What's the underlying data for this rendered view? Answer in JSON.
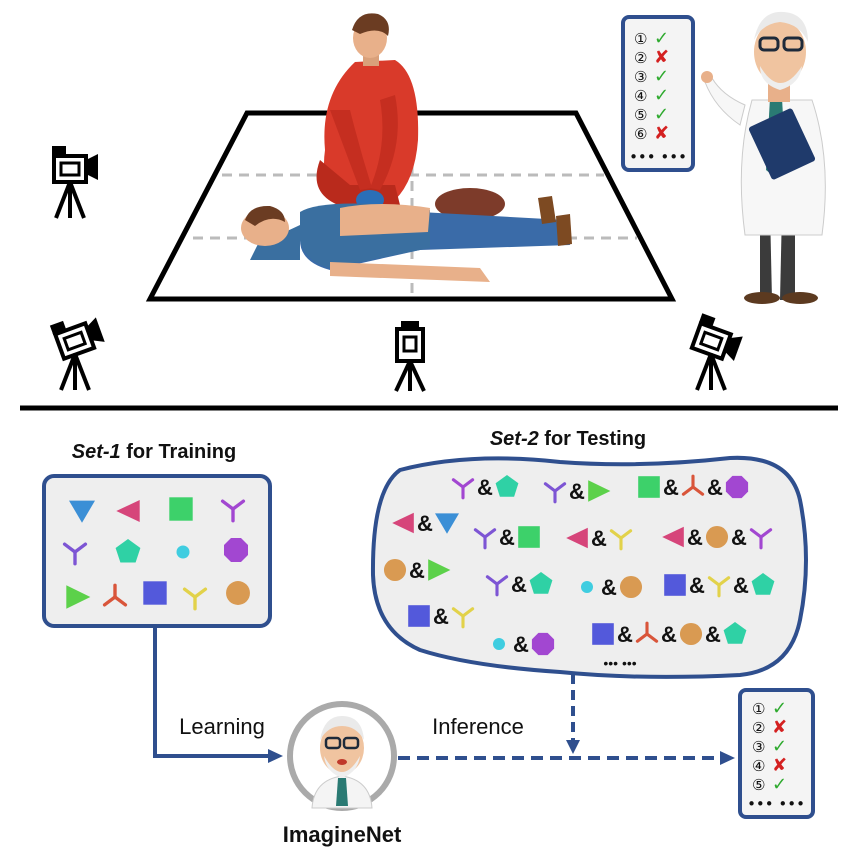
{
  "colors": {
    "navy": "#2F4F8E",
    "panel_fill": "#EEEEEE",
    "check_green": "#2EAA2E",
    "cross_red": "#D42020",
    "blue": "#3B8FD6",
    "magenta": "#D6457A",
    "green": "#3DD16A",
    "violet": "#A247D1",
    "purple": "#7D55D4",
    "teal": "#2FD1A5",
    "cyan": "#3FCDE0",
    "orange": "#D99A52",
    "lime": "#5CD14A",
    "red": "#D9553A",
    "indigo": "#5359DB",
    "yellow": "#E2D24A"
  },
  "top": {
    "checklist": {
      "items": [
        {
          "num": "①",
          "mark": "✓"
        },
        {
          "num": "②",
          "mark": "✘"
        },
        {
          "num": "③",
          "mark": "✓"
        },
        {
          "num": "④",
          "mark": "✓"
        },
        {
          "num": "⑤",
          "mark": "✓"
        },
        {
          "num": "⑥",
          "mark": "✘"
        }
      ],
      "more": "••• •••"
    }
  },
  "set1": {
    "title_em": "Set-1",
    "title_rest": " for Training",
    "shapes": [
      [
        "tri-down",
        "blue"
      ],
      [
        "tri-left",
        "magenta"
      ],
      [
        "square",
        "green"
      ],
      [
        "y-sym",
        "violet"
      ],
      [
        "y-sym",
        "purple"
      ],
      [
        "pentagon",
        "teal"
      ],
      [
        "circle-sm",
        "cyan"
      ],
      [
        "octagon",
        "violet"
      ],
      [
        "tri-right",
        "lime"
      ],
      [
        "y-inv",
        "red"
      ],
      [
        "square",
        "indigo"
      ],
      [
        "y-sym",
        "yellow"
      ],
      [
        "circle",
        "orange"
      ]
    ]
  },
  "set2": {
    "title_em": "Set-2",
    "title_rest": " for Testing",
    "amp": "&",
    "groups": [
      [
        [
          "y-sym",
          "violet"
        ],
        [
          "pentagon",
          "teal"
        ]
      ],
      [
        [
          "y-sym",
          "purple"
        ],
        [
          "tri-right",
          "lime"
        ]
      ],
      [
        [
          "square",
          "green"
        ],
        [
          "y-inv",
          "red"
        ],
        [
          "octagon",
          "violet"
        ]
      ],
      [
        [
          "tri-left",
          "magenta"
        ],
        [
          "tri-down",
          "blue"
        ]
      ],
      [
        [
          "y-sym",
          "purple"
        ],
        [
          "square",
          "green"
        ]
      ],
      [
        [
          "tri-left",
          "magenta"
        ],
        [
          "y-sym",
          "yellow"
        ]
      ],
      [
        [
          "tri-left",
          "magenta"
        ],
        [
          "circle",
          "orange"
        ],
        [
          "y-sym",
          "violet"
        ]
      ],
      [
        [
          "circle",
          "orange"
        ],
        [
          "tri-right",
          "lime"
        ]
      ],
      [
        [
          "y-sym",
          "purple"
        ],
        [
          "pentagon",
          "teal"
        ]
      ],
      [
        [
          "circle-sm",
          "cyan"
        ],
        [
          "circle",
          "orange"
        ]
      ],
      [
        [
          "square",
          "indigo"
        ],
        [
          "y-sym",
          "yellow"
        ],
        [
          "pentagon",
          "teal"
        ]
      ],
      [
        [
          "square",
          "indigo"
        ],
        [
          "y-sym",
          "yellow"
        ]
      ],
      [
        [
          "circle-sm",
          "cyan"
        ],
        [
          "octagon",
          "violet"
        ]
      ],
      [
        [
          "square",
          "indigo"
        ],
        [
          "y-inv",
          "red"
        ],
        [
          "circle",
          "orange"
        ],
        [
          "pentagon",
          "teal"
        ]
      ]
    ],
    "more": "••• •••"
  },
  "flow": {
    "learning": "Learning",
    "inference": "Inference",
    "model": "ImagineNet"
  },
  "result_checklist": {
    "items": [
      {
        "num": "①",
        "mark": "✓"
      },
      {
        "num": "②",
        "mark": "✘"
      },
      {
        "num": "③",
        "mark": "✓"
      },
      {
        "num": "④",
        "mark": "✘"
      },
      {
        "num": "⑤",
        "mark": "✓"
      }
    ],
    "more": "••• •••"
  }
}
